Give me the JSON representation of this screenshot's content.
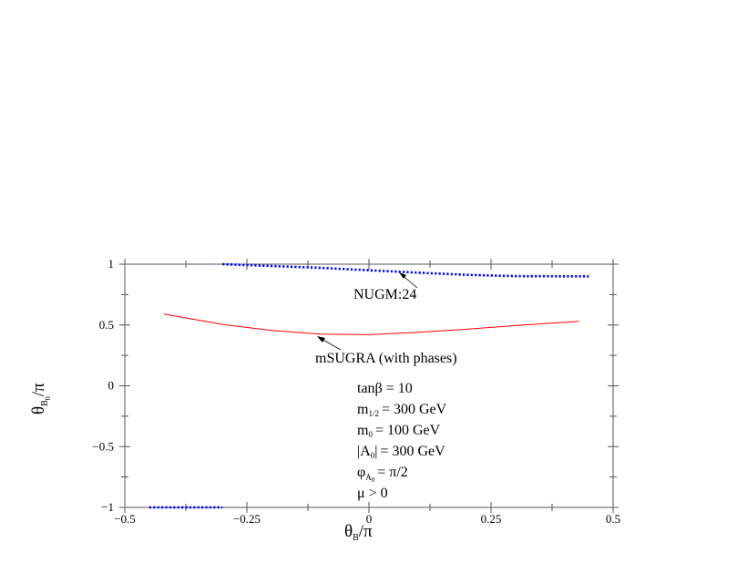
{
  "chart_data": {
    "type": "line",
    "xlabel": "θB/π",
    "ylabel": "θB0/π",
    "xlim": [
      -0.5,
      0.5
    ],
    "ylim": [
      -1,
      1
    ],
    "xticks": [
      -0.5,
      -0.25,
      0,
      0.25,
      0.5
    ],
    "xtick_labels": [
      "−0.5",
      "−0.25",
      "0",
      "0.25",
      "0.5"
    ],
    "yticks": [
      -1,
      -0.5,
      0,
      0.5,
      1
    ],
    "ytick_labels": [
      "−1",
      "−0.5",
      "0",
      "0.5",
      "1"
    ],
    "grid": false,
    "series": [
      {
        "name": "NUGM:24",
        "color": "#0000ff",
        "style": "dotted",
        "segments": [
          [
            [
              -0.3,
              1.0
            ],
            [
              -0.2,
              0.985
            ],
            [
              -0.1,
              0.97
            ],
            [
              0,
              0.95
            ],
            [
              0.1,
              0.93
            ],
            [
              0.2,
              0.912
            ],
            [
              0.3,
              0.902
            ],
            [
              0.45,
              0.9
            ]
          ],
          [
            [
              -0.45,
              -1.0
            ],
            [
              -0.3,
              -1.0
            ]
          ]
        ]
      },
      {
        "name": "mSUGRA (with phases)",
        "color": "#ff0000",
        "style": "solid",
        "segments": [
          [
            [
              -0.42,
              0.59
            ],
            [
              -0.35,
              0.54
            ],
            [
              -0.3,
              0.505
            ],
            [
              -0.2,
              0.455
            ],
            [
              -0.1,
              0.425
            ],
            [
              0,
              0.42
            ],
            [
              0.1,
              0.44
            ],
            [
              0.2,
              0.465
            ],
            [
              0.3,
              0.495
            ],
            [
              0.43,
              0.53
            ]
          ]
        ]
      }
    ],
    "annotations": [
      {
        "label": "NUGM:24",
        "points_to": [
          0.065,
          0.93
        ]
      },
      {
        "label": "mSUGRA (with phases)",
        "points_to": [
          -0.1,
          0.4
        ]
      }
    ],
    "parameters": {
      "tanb": "tanβ = 10",
      "m12": "= 300 GeV",
      "m0": "= 100 GeV",
      "A0": "= 300 GeV",
      "phi": "= π/2",
      "mu": "μ > 0"
    }
  }
}
